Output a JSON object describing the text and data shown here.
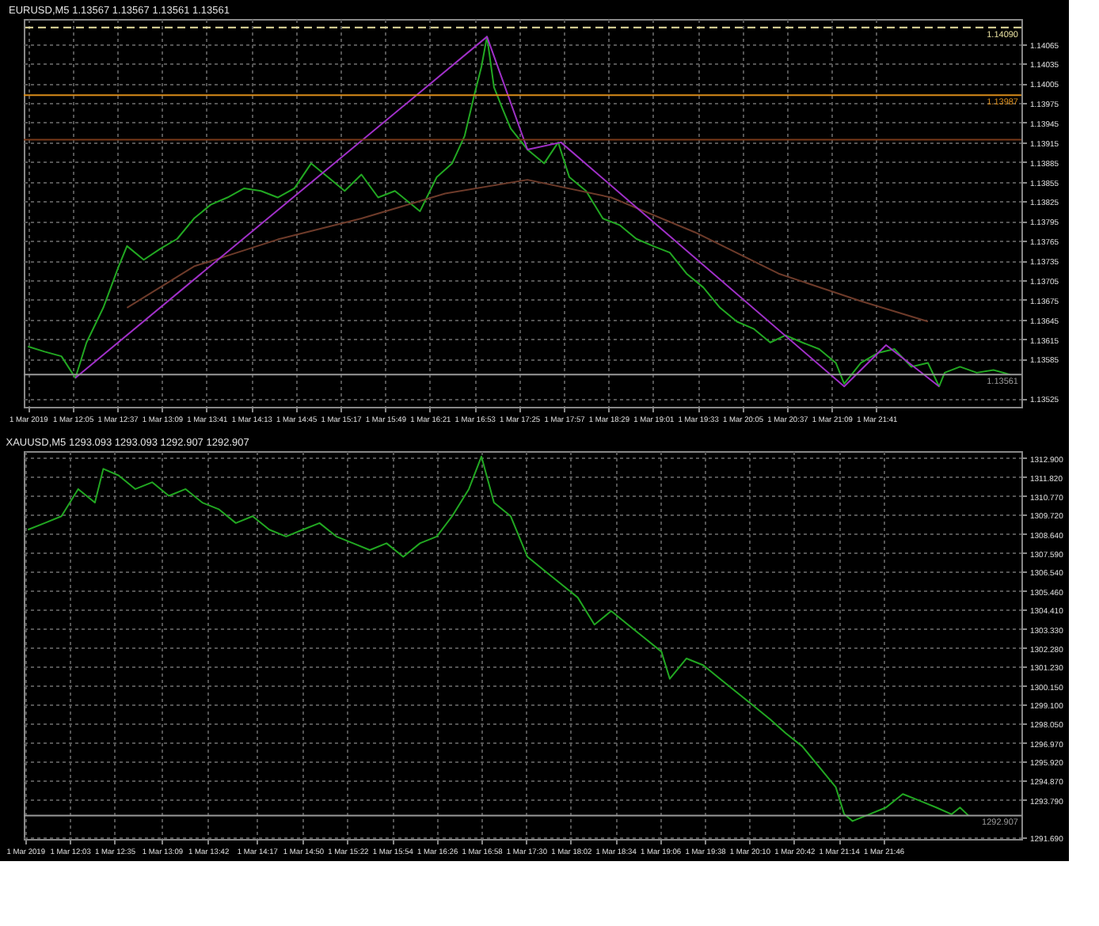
{
  "chart_data": [
    {
      "type": "line",
      "title": "EURUSD,M5 1.13567 1.13567 1.13561 1.13561",
      "grid": true,
      "marker": "none",
      "line_style": "solid",
      "xlim": [
        "2019-03-01T11:30",
        "2019-03-01T23:25"
      ],
      "ylim": [
        1.13512,
        1.14103
      ],
      "xticks": [
        {
          "value": "2019-03-01T11:33",
          "label": "1 Mar 2019"
        },
        {
          "value": "2019-03-01T12:05",
          "label": "1 Mar 12:05"
        },
        {
          "value": "2019-03-01T12:37",
          "label": "1 Mar 12:37"
        },
        {
          "value": "2019-03-01T13:09",
          "label": "1 Mar 13:09"
        },
        {
          "value": "2019-03-01T13:41",
          "label": "1 Mar 13:41"
        },
        {
          "value": "2019-03-01T14:13",
          "label": "1 Mar 14:13"
        },
        {
          "value": "2019-03-01T14:45",
          "label": "1 Mar 14:45"
        },
        {
          "value": "2019-03-01T15:17",
          "label": "1 Mar 15:17"
        },
        {
          "value": "2019-03-01T15:49",
          "label": "1 Mar 15:49"
        },
        {
          "value": "2019-03-01T16:21",
          "label": "1 Mar 16:21"
        },
        {
          "value": "2019-03-01T16:53",
          "label": "1 Mar 16:53"
        },
        {
          "value": "2019-03-01T17:25",
          "label": "1 Mar 17:25"
        },
        {
          "value": "2019-03-01T17:57",
          "label": "1 Mar 17:57"
        },
        {
          "value": "2019-03-01T18:29",
          "label": "1 Mar 18:29"
        },
        {
          "value": "2019-03-01T19:01",
          "label": "1 Mar 19:01"
        },
        {
          "value": "2019-03-01T19:33",
          "label": "1 Mar 19:33"
        },
        {
          "value": "2019-03-01T20:05",
          "label": "1 Mar 20:05"
        },
        {
          "value": "2019-03-01T20:37",
          "label": "1 Mar 20:37"
        },
        {
          "value": "2019-03-01T21:09",
          "label": "1 Mar 21:09"
        },
        {
          "value": "2019-03-01T21:41",
          "label": "1 Mar 21:41"
        }
      ],
      "yticks": [
        1.14065,
        1.14035,
        1.14005,
        1.13975,
        1.13945,
        1.13915,
        1.13885,
        1.13855,
        1.13825,
        1.13795,
        1.13765,
        1.13735,
        1.13705,
        1.13675,
        1.13645,
        1.13615,
        1.13585,
        1.13525
      ],
      "ref_lines": [
        {
          "axis": "y",
          "value": 1.1409,
          "label": "1.14090",
          "color": "#e8e0a0",
          "line_style": "dashed"
        },
        {
          "axis": "y",
          "value": 1.13987,
          "label": "1.13987",
          "color": "#d98c1a",
          "line_style": "solid"
        },
        {
          "axis": "y",
          "value": 1.13919,
          "color": "#7a3a1a",
          "line_style": "solid"
        },
        {
          "axis": "y",
          "value": 1.13561,
          "label": "1.13561",
          "color": "#9a9a9a",
          "line_style": "solid"
        }
      ],
      "series": [
        {
          "color": "#22a822",
          "x": [
            "2019-03-01T11:33",
            "2019-03-01T11:45",
            "2019-03-01T11:57",
            "2019-03-01T12:07",
            "2019-03-01T12:15",
            "2019-03-01T12:27",
            "2019-03-01T12:38",
            "2019-03-01T12:44",
            "2019-03-01T12:56",
            "2019-03-01T13:08",
            "2019-03-01T13:20",
            "2019-03-01T13:32",
            "2019-03-01T13:44",
            "2019-03-01T13:56",
            "2019-03-01T14:08",
            "2019-03-01T14:20",
            "2019-03-01T14:32",
            "2019-03-01T14:44",
            "2019-03-01T14:56",
            "2019-03-01T15:08",
            "2019-03-01T15:20",
            "2019-03-01T15:32",
            "2019-03-01T15:44",
            "2019-03-01T15:56",
            "2019-03-01T16:14",
            "2019-03-01T16:26",
            "2019-03-01T16:37",
            "2019-03-01T16:46",
            "2019-03-01T16:53",
            "2019-03-01T16:58",
            "2019-03-01T17:02",
            "2019-03-01T17:07",
            "2019-03-01T17:13",
            "2019-03-01T17:19",
            "2019-03-01T17:31",
            "2019-03-01T17:43",
            "2019-03-01T17:53",
            "2019-03-01T18:01",
            "2019-03-01T18:13",
            "2019-03-01T18:25",
            "2019-03-01T18:37",
            "2019-03-01T18:49",
            "2019-03-01T19:01",
            "2019-03-01T19:13",
            "2019-03-01T19:25",
            "2019-03-01T19:37",
            "2019-03-01T19:49",
            "2019-03-01T20:01",
            "2019-03-01T20:13",
            "2019-03-01T20:25",
            "2019-03-01T20:36",
            "2019-03-01T20:48",
            "2019-03-01T21:00",
            "2019-03-01T21:12",
            "2019-03-01T21:18",
            "2019-03-01T21:30",
            "2019-03-01T21:42",
            "2019-03-01T21:54",
            "2019-03-01T22:06",
            "2019-03-01T22:18",
            "2019-03-01T22:26",
            "2019-03-01T22:30",
            "2019-03-01T22:41",
            "2019-03-01T22:53",
            "2019-03-01T23:05",
            "2019-03-01T23:17"
          ],
          "values": [
            1.13604,
            1.13596,
            1.13589,
            1.13556,
            1.1361,
            1.13663,
            1.13726,
            1.13757,
            1.13736,
            1.13753,
            1.13768,
            1.13799,
            1.1382,
            1.13831,
            1.13845,
            1.13841,
            1.13831,
            1.13845,
            1.13883,
            1.13862,
            1.13841,
            1.13866,
            1.13831,
            1.13841,
            1.1381,
            1.13862,
            1.13883,
            1.13925,
            1.13988,
            1.1403,
            1.14076,
            1.13999,
            1.13967,
            1.13936,
            1.13904,
            1.13883,
            1.13915,
            1.13862,
            1.13841,
            1.13799,
            1.13789,
            1.13768,
            1.13757,
            1.13747,
            1.13715,
            1.13694,
            1.13663,
            1.13642,
            1.13631,
            1.1361,
            1.13621,
            1.1361,
            1.136,
            1.13579,
            1.13547,
            1.13579,
            1.13594,
            1.136,
            1.13573,
            1.13579,
            1.13543,
            1.13564,
            1.13573,
            1.13564,
            1.13568,
            1.13561
          ]
        },
        {
          "color": "#6e3b2a",
          "x": [
            "2019-03-01T12:44",
            "2019-03-01T13:32",
            "2019-03-01T14:32",
            "2019-03-01T15:32",
            "2019-03-01T16:32",
            "2019-03-01T17:31",
            "2019-03-01T18:31",
            "2019-03-01T19:31",
            "2019-03-01T20:31",
            "2019-03-01T21:30",
            "2019-03-01T22:18"
          ],
          "values": [
            1.13663,
            1.13726,
            1.13767,
            1.13799,
            1.13837,
            1.13858,
            1.13831,
            1.13778,
            1.13715,
            1.13673,
            1.13642
          ]
        },
        {
          "color": "#a030c8",
          "x": [
            "2019-03-01T12:07",
            "2019-03-01T17:02",
            "2019-03-01T17:31",
            "2019-03-01T17:55",
            "2019-03-01T21:18",
            "2019-03-01T21:48",
            "2019-03-01T22:26"
          ],
          "values": [
            1.13556,
            1.14076,
            1.13904,
            1.13915,
            1.13543,
            1.13606,
            1.13543
          ]
        }
      ]
    },
    {
      "type": "line",
      "title": "XAUUSD,M5 1293.093 1293.093 1292.907 1292.907",
      "grid": true,
      "marker": "none",
      "line_style": "solid",
      "xlim": [
        "2019-03-01T11:30",
        "2019-03-01T23:25"
      ],
      "ylim": [
        1291.6,
        1313.28
      ],
      "xticks": [
        {
          "value": "2019-03-01T11:31",
          "label": "1 Mar 2019"
        },
        {
          "value": "2019-03-01T12:03",
          "label": "1 Mar 12:03"
        },
        {
          "value": "2019-03-01T12:35",
          "label": "1 Mar 12:35"
        },
        {
          "value": "2019-03-01T13:09",
          "label": "1 Mar 13:09"
        },
        {
          "value": "2019-03-01T13:42",
          "label": "1 Mar 13:42"
        },
        {
          "value": "2019-03-01T14:17",
          "label": "1 Mar 14:17"
        },
        {
          "value": "2019-03-01T14:50",
          "label": "1 Mar 14:50"
        },
        {
          "value": "2019-03-01T15:22",
          "label": "1 Mar 15:22"
        },
        {
          "value": "2019-03-01T15:54",
          "label": "1 Mar 15:54"
        },
        {
          "value": "2019-03-01T16:26",
          "label": "1 Mar 16:26"
        },
        {
          "value": "2019-03-01T16:58",
          "label": "1 Mar 16:58"
        },
        {
          "value": "2019-03-01T17:30",
          "label": "1 Mar 17:30"
        },
        {
          "value": "2019-03-01T18:02",
          "label": "1 Mar 18:02"
        },
        {
          "value": "2019-03-01T18:34",
          "label": "1 Mar 18:34"
        },
        {
          "value": "2019-03-01T19:06",
          "label": "1 Mar 19:06"
        },
        {
          "value": "2019-03-01T19:38",
          "label": "1 Mar 19:38"
        },
        {
          "value": "2019-03-01T20:10",
          "label": "1 Mar 20:10"
        },
        {
          "value": "2019-03-01T20:42",
          "label": "1 Mar 20:42"
        },
        {
          "value": "2019-03-01T21:14",
          "label": "1 Mar 21:14"
        },
        {
          "value": "2019-03-01T21:46",
          "label": "1 Mar 21:46"
        }
      ],
      "yticks": [
        {
          "value": 1312.9,
          "label": "1312.900"
        },
        {
          "value": 1311.82,
          "label": "1311.820"
        },
        {
          "value": 1310.77,
          "label": "1310.770"
        },
        {
          "value": 1309.72,
          "label": "1309.720"
        },
        {
          "value": 1308.64,
          "label": "1308.640"
        },
        {
          "value": 1307.59,
          "label": "1307.590"
        },
        {
          "value": 1306.54,
          "label": "1306.540"
        },
        {
          "value": 1305.46,
          "label": "1305.460"
        },
        {
          "value": 1304.41,
          "label": "1304.410"
        },
        {
          "value": 1303.33,
          "label": "1303.330"
        },
        {
          "value": 1302.28,
          "label": "1302.280"
        },
        {
          "value": 1301.23,
          "label": "1301.230"
        },
        {
          "value": 1300.15,
          "label": "1300.150"
        },
        {
          "value": 1299.1,
          "label": "1299.100"
        },
        {
          "value": 1298.05,
          "label": "1298.050"
        },
        {
          "value": 1296.97,
          "label": "1296.970"
        },
        {
          "value": 1295.92,
          "label": "1295.920"
        },
        {
          "value": 1294.87,
          "label": "1294.870"
        },
        {
          "value": 1293.79,
          "label": "1293.790"
        },
        {
          "value": 1291.69,
          "label": "1291.690"
        }
      ],
      "ref_lines": [
        {
          "axis": "y",
          "value": 1292.907,
          "label": "1292.907",
          "color": "#9a9a9a",
          "line_style": "solid"
        }
      ],
      "series": [
        {
          "color": "#22a822",
          "x": [
            "2019-03-01T11:33",
            "2019-03-01T11:45",
            "2019-03-01T11:57",
            "2019-03-01T12:09",
            "2019-03-01T12:21",
            "2019-03-01T12:27",
            "2019-03-01T12:38",
            "2019-03-01T12:50",
            "2019-03-01T13:02",
            "2019-03-01T13:14",
            "2019-03-01T13:26",
            "2019-03-01T13:38",
            "2019-03-01T13:50",
            "2019-03-01T14:02",
            "2019-03-01T14:14",
            "2019-03-01T14:26",
            "2019-03-01T14:38",
            "2019-03-01T14:50",
            "2019-03-01T15:02",
            "2019-03-01T15:14",
            "2019-03-01T15:26",
            "2019-03-01T15:38",
            "2019-03-01T15:50",
            "2019-03-01T16:02",
            "2019-03-01T16:14",
            "2019-03-01T16:26",
            "2019-03-01T16:37",
            "2019-03-01T16:49",
            "2019-03-01T16:58",
            "2019-03-01T17:07",
            "2019-03-01T17:19",
            "2019-03-01T17:31",
            "2019-03-01T17:43",
            "2019-03-01T17:55",
            "2019-03-01T18:07",
            "2019-03-01T18:19",
            "2019-03-01T18:31",
            "2019-03-01T18:43",
            "2019-03-01T18:55",
            "2019-03-01T19:07",
            "2019-03-01T19:13",
            "2019-03-01T19:25",
            "2019-03-01T19:37",
            "2019-03-01T19:49",
            "2019-03-01T20:01",
            "2019-03-01T20:13",
            "2019-03-01T20:25",
            "2019-03-01T20:36",
            "2019-03-01T20:48",
            "2019-03-01T21:00",
            "2019-03-01T21:12",
            "2019-03-01T21:18",
            "2019-03-01T21:24",
            "2019-03-01T21:36",
            "2019-03-01T21:48",
            "2019-03-01T22:00",
            "2019-03-01T22:12",
            "2019-03-01T22:24",
            "2019-03-01T22:35",
            "2019-03-01T22:41",
            "2019-03-01T22:47"
          ],
          "values": [
            1308.89,
            1309.26,
            1309.64,
            1311.16,
            1310.4,
            1312.29,
            1311.92,
            1311.16,
            1311.54,
            1310.78,
            1311.16,
            1310.4,
            1310.02,
            1309.26,
            1309.64,
            1308.89,
            1308.51,
            1308.89,
            1309.26,
            1308.51,
            1308.13,
            1307.75,
            1308.13,
            1307.37,
            1308.13,
            1308.51,
            1309.64,
            1311.16,
            1312.98,
            1310.4,
            1309.64,
            1307.37,
            1306.61,
            1305.86,
            1305.1,
            1303.58,
            1304.34,
            1303.58,
            1302.83,
            1302.07,
            1300.55,
            1301.69,
            1301.31,
            1300.55,
            1299.8,
            1299.04,
            1298.28,
            1297.52,
            1296.77,
            1295.63,
            1294.49,
            1292.98,
            1292.6,
            1292.98,
            1293.36,
            1294.11,
            1293.74,
            1293.36,
            1292.98,
            1293.36,
            1292.91
          ]
        }
      ]
    }
  ]
}
